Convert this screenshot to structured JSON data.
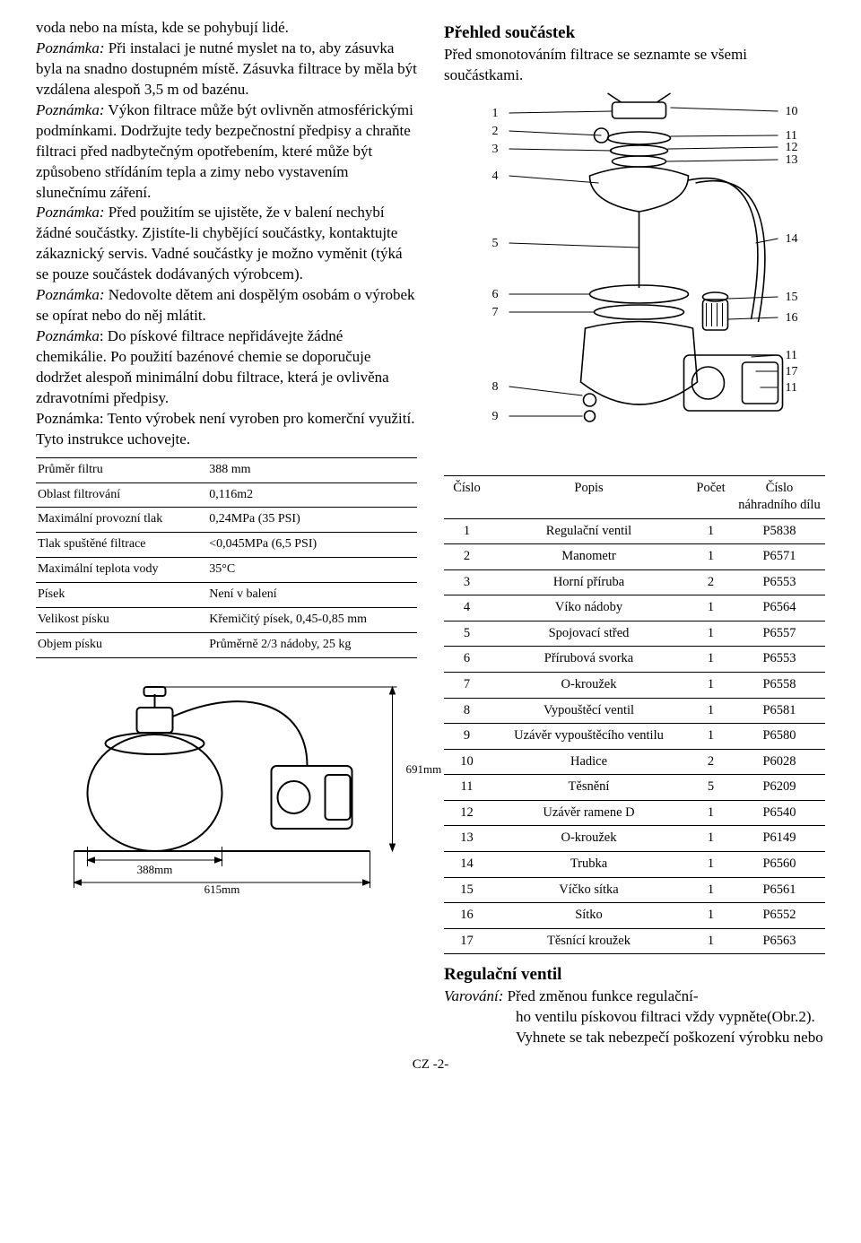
{
  "left": {
    "para1": "voda nebo na místa, kde se pohybují lidé.",
    "note1_label": "Poznámka:",
    "note1_text": " Při instalaci je nutné myslet na to, aby zásuvka byla na snadno dostupném místě. Zásuvka filtrace by měla být vzdálena alespoň 3,5 m od bazénu.",
    "note2_label": "Poznámka:",
    "note2_text": " Výkon filtrace může být ovlivněn atmosférickými podmínkami. Dodržujte tedy bezpečnostní předpisy a chraňte filtraci před nadbytečným opotřebením, které může být způsobeno střídáním tepla a zimy nebo vystavením slunečnímu záření.",
    "note3_label": "Poznámka:",
    "note3_text": " Před použitím se ujistěte, že v balení nechybí žádné součástky. Zjistíte-li chybějící součástky, kontaktujte zákaznický servis. Vadné součástky je možno vyměnit (týká se pouze součástek dodávaných výrobcem).",
    "note4_label": "Poznámka:",
    "note4_text": " Nedovolte dětem ani dospělým osobám o výrobek se opírat nebo do něj mlátit.",
    "note5_label": "Poznámka",
    "note5_text": ": Do pískové filtrace nepřidávejte žádné chemikálie. Po použití bazénové chemie se doporučuje dodržet alespoň minimální dobu filtrace, která je ovlivěna zdravotními předpisy.",
    "note6": "Poznámka: Tento výrobek není vyroben pro komerční využití.",
    "keep": "Tyto instrukce uchovejte.",
    "spec_rows": [
      [
        "Průměr filtru",
        "388 mm"
      ],
      [
        "Oblast filtrování",
        "0,116m2"
      ],
      [
        "Maximální provozní tlak",
        "0,24MPa (35 PSI)"
      ],
      [
        "Tlak spuštěné filtrace",
        "<0,045MPa (6,5 PSI)"
      ],
      [
        "Maximální teplota vody",
        "35°C"
      ],
      [
        "Písek",
        "Není v balení"
      ],
      [
        "Velikost písku",
        "Křemičitý písek, 0,45-0,85 mm"
      ],
      [
        "Objem písku",
        "Průměrně 2/3 nádoby, 25 kg"
      ]
    ],
    "dim_388": "388mm",
    "dim_615": "615mm",
    "dim_691": "691mm"
  },
  "right": {
    "heading1": "Přehled součástek",
    "intro": "Před smonotováním filtrace se seznamte se všemi součástkami.",
    "callouts_left": [
      "1",
      "2",
      "3",
      "4",
      "5",
      "6",
      "7",
      "8",
      "9"
    ],
    "callouts_right": [
      "10",
      "11",
      "12",
      "13",
      "14",
      "15",
      "16",
      "11",
      "17",
      "11"
    ],
    "parts_header": [
      "Číslo",
      "Popis",
      "Počet",
      "Číslo náhradního dílu"
    ],
    "parts_rows": [
      [
        "1",
        "Regulační ventil",
        "1",
        "P5838"
      ],
      [
        "2",
        "Manometr",
        "1",
        "P6571"
      ],
      [
        "3",
        "Horní příruba",
        "2",
        "P6553"
      ],
      [
        "4",
        "Víko nádoby",
        "1",
        "P6564"
      ],
      [
        "5",
        "Spojovací střed",
        "1",
        "P6557"
      ],
      [
        "6",
        "Přírubová svorka",
        "1",
        "P6553"
      ],
      [
        "7",
        "O-kroužek",
        "1",
        "P6558"
      ],
      [
        "8",
        "Vypouštěcí ventil",
        "1",
        "P6581"
      ],
      [
        "9",
        "Uzávěr vypouštěcího ventilu",
        "1",
        "P6580"
      ],
      [
        "10",
        "Hadice",
        "2",
        "P6028"
      ],
      [
        "11",
        "Těsnění",
        "5",
        "P6209"
      ],
      [
        "12",
        "Uzávěr ramene D",
        "1",
        "P6540"
      ],
      [
        "13",
        "O-kroužek",
        "1",
        "P6149"
      ],
      [
        "14",
        "Trubka",
        "1",
        "P6560"
      ],
      [
        "15",
        "Víčko sítka",
        "1",
        "P6561"
      ],
      [
        "16",
        "Sítko",
        "1",
        "P6552"
      ],
      [
        "17",
        "Těsnící kroužek",
        "1",
        "P6563"
      ]
    ],
    "heading2": "Regulační ventil",
    "warn_label": "Varování:",
    "warn_text1": " Před změnou funkce regulační-",
    "warn_text2": "ho ventilu pískovou filtraci vždy vypněte(Obr.2). Vyhnete se tak nebezpečí poškození výrobku nebo"
  },
  "footer": "CZ -2-",
  "style": {
    "text_color": "#000000",
    "bg": "#ffffff",
    "border_color": "#000000",
    "body_fontsize": 17,
    "table_fontsize": 14,
    "heading_fontsize": 19
  }
}
